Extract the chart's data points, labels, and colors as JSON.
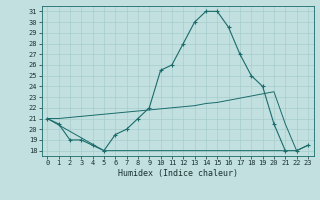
{
  "xlabel": "Humidex (Indice chaleur)",
  "bg_color": "#c2e0e0",
  "line_color": "#1a6b6b",
  "xlim": [
    -0.5,
    23.5
  ],
  "ylim": [
    17.5,
    31.5
  ],
  "xticks": [
    0,
    1,
    2,
    3,
    4,
    5,
    6,
    7,
    8,
    9,
    10,
    11,
    12,
    13,
    14,
    15,
    16,
    17,
    18,
    19,
    20,
    21,
    22,
    23
  ],
  "yticks": [
    18,
    19,
    20,
    21,
    22,
    23,
    24,
    25,
    26,
    27,
    28,
    29,
    30,
    31
  ],
  "line1_x": [
    0,
    1,
    2,
    3,
    4,
    5,
    6,
    7,
    8,
    9,
    10,
    11,
    12,
    13,
    14,
    15,
    16,
    17,
    18,
    19,
    20,
    21,
    22,
    23
  ],
  "line1_y": [
    21,
    20.5,
    19,
    19,
    18.5,
    18,
    19.5,
    20,
    21,
    22,
    25.5,
    26,
    28,
    30,
    31,
    31,
    29.5,
    27,
    25,
    24,
    20.5,
    18,
    18,
    18.5
  ],
  "line2_x": [
    0,
    5,
    21
  ],
  "line2_y": [
    21,
    18,
    18
  ],
  "line3_x": [
    0,
    1,
    2,
    3,
    4,
    5,
    6,
    7,
    8,
    9,
    10,
    11,
    12,
    13,
    14,
    15,
    16,
    17,
    18,
    19,
    20,
    21,
    22,
    23
  ],
  "line3_y": [
    21,
    21.0,
    21.1,
    21.2,
    21.3,
    21.4,
    21.5,
    21.6,
    21.7,
    21.8,
    21.9,
    22.0,
    22.1,
    22.2,
    22.4,
    22.5,
    22.7,
    22.9,
    23.1,
    23.3,
    23.5,
    20.5,
    18.0,
    18.5
  ],
  "grid_color": "#a8cccc"
}
